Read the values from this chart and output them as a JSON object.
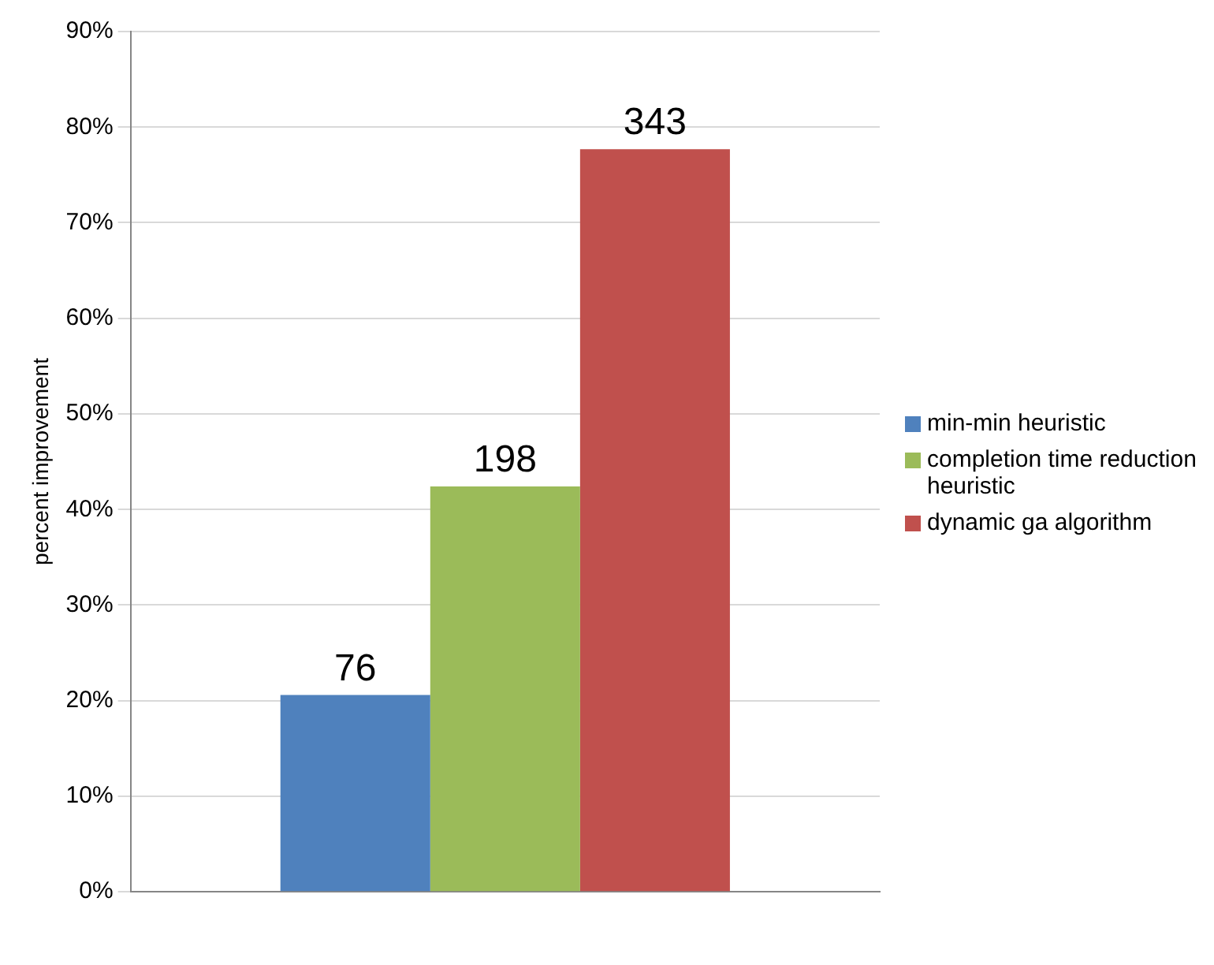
{
  "chart_data": {
    "type": "bar",
    "ylabel": "percent improvement",
    "categories": [
      null
    ],
    "series": [
      {
        "name": "min-min heuristic",
        "color": "#4f81bd",
        "values": [
          20.6
        ]
      },
      {
        "name": "completion time reduction heuristic",
        "color": "#9bbb59",
        "values": [
          42.4
        ]
      },
      {
        "name": "dynamic ga algorithm",
        "color": "#c0504d",
        "values": [
          77.7
        ]
      }
    ],
    "annotations": [
      {
        "text": "76",
        "y": 20.6
      },
      {
        "text": "198",
        "y": 42.4
      },
      {
        "text": "343",
        "y": 77.7
      }
    ],
    "ylim": [
      0,
      90
    ],
    "yticks": [
      {
        "value": 0,
        "label": "0%"
      },
      {
        "value": 10,
        "label": "10%"
      },
      {
        "value": 20,
        "label": "20%"
      },
      {
        "value": 30,
        "label": "30%"
      },
      {
        "value": 40,
        "label": "40%"
      },
      {
        "value": 50,
        "label": "50%"
      },
      {
        "value": 60,
        "label": "60%"
      },
      {
        "value": 70,
        "label": "70%"
      },
      {
        "value": 80,
        "label": "80%"
      },
      {
        "value": 90,
        "label": "90%"
      }
    ],
    "grid": "y",
    "legend": "right"
  }
}
